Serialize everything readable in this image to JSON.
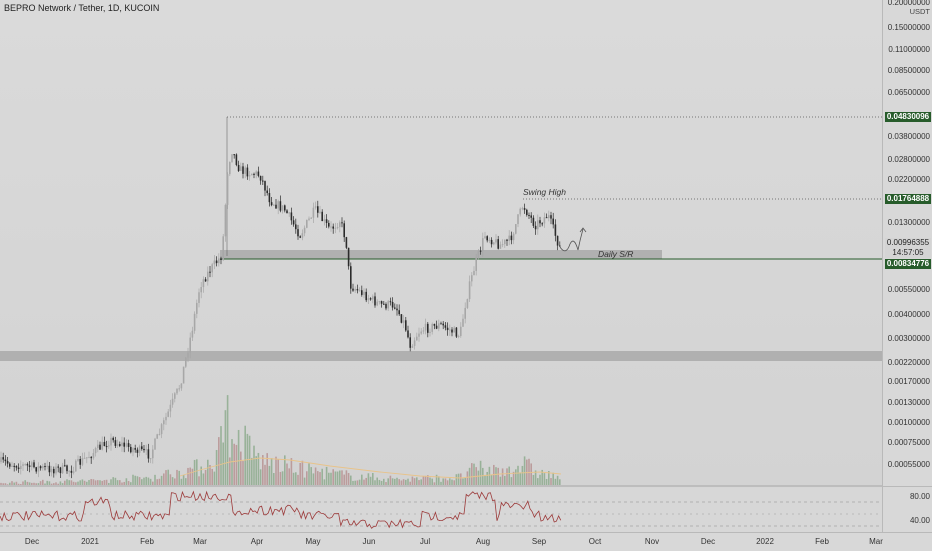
{
  "header": {
    "title": "BEPRO Network / Tether, 1D, KUCOIN"
  },
  "price_axis": {
    "currency": "USDT",
    "ticks": [
      "0.20000000",
      "0.15000000",
      "0.11000000",
      "0.08500000",
      "0.06500000",
      "0.03800000",
      "0.02800000",
      "0.02200000",
      "0.01300000",
      "0.00550000",
      "0.00400000",
      "0.00300000",
      "0.00220000",
      "0.00170000",
      "0.00130000",
      "0.00100000",
      "0.00075000",
      "0.00055000"
    ],
    "labels": {
      "ath": "0.04830096",
      "swing_high": "0.01764888",
      "current": "0.00996355",
      "countdown": "14:57:05",
      "support": "0.00834776"
    }
  },
  "annotations": {
    "swing_high": "Swing High",
    "daily_sr": "Daily S/R"
  },
  "rsi_axis": {
    "ticks": [
      "80.00",
      "40.00"
    ]
  },
  "time_axis": {
    "labels": [
      "Dec",
      "2021",
      "Feb",
      "Mar",
      "Apr",
      "May",
      "Jun",
      "Jul",
      "Aug",
      "Sep",
      "Oct",
      "Nov",
      "Dec",
      "2022",
      "Feb",
      "Mar"
    ]
  },
  "colors": {
    "up": "#a7a7a7",
    "down": "#2b2b2b",
    "rsi": "#9c3a3a",
    "level_green": "#275c2b",
    "volume_up": "#8aa98a",
    "volume_down": "#b58f8f",
    "ma": "#e8c38a"
  }
}
